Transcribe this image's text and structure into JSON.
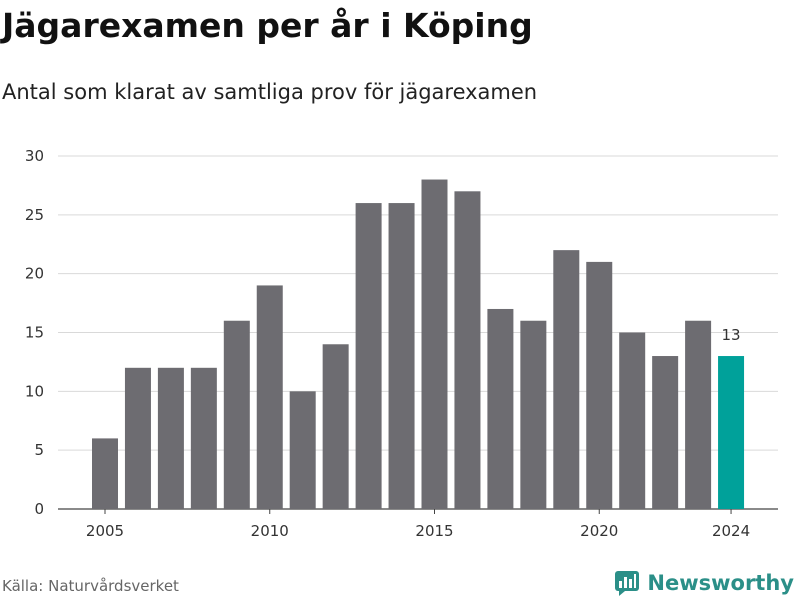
{
  "header": {
    "title": "Jägarexamen per år i Köping",
    "subtitle": "Antal som klarat av samtliga prov för jägarexamen"
  },
  "footer": {
    "source": "Källa: Naturvårdsverket",
    "brand": "Newsworthy",
    "brand_color": "#2b8f88",
    "logo_icon": "bar-chart-bubble-icon"
  },
  "colors": {
    "bar": "#6d6c71",
    "highlight": "#00a19a",
    "grid": "#d9d9d9"
  },
  "chart_data": {
    "type": "bar",
    "title": "Jägarexamen per år i Köping",
    "subtitle": "Antal som klarat av samtliga prov för jägarexamen",
    "xlabel": "",
    "ylabel": "",
    "categories": [
      2005,
      2006,
      2007,
      2008,
      2009,
      2010,
      2011,
      2012,
      2013,
      2014,
      2015,
      2016,
      2017,
      2018,
      2019,
      2020,
      2021,
      2022,
      2023,
      2024
    ],
    "values": [
      6,
      12,
      12,
      12,
      16,
      19,
      10,
      14,
      26,
      26,
      28,
      27,
      17,
      16,
      22,
      21,
      15,
      13,
      16,
      13
    ],
    "highlight_category": 2024,
    "annotations": [
      {
        "x": 2024,
        "text": "13"
      }
    ],
    "ylim": [
      0,
      30
    ],
    "yticks": [
      0,
      5,
      10,
      15,
      20,
      25,
      30
    ],
    "xticks": [
      2005,
      2010,
      2015,
      2020,
      2024
    ],
    "grid": "horizontal"
  }
}
